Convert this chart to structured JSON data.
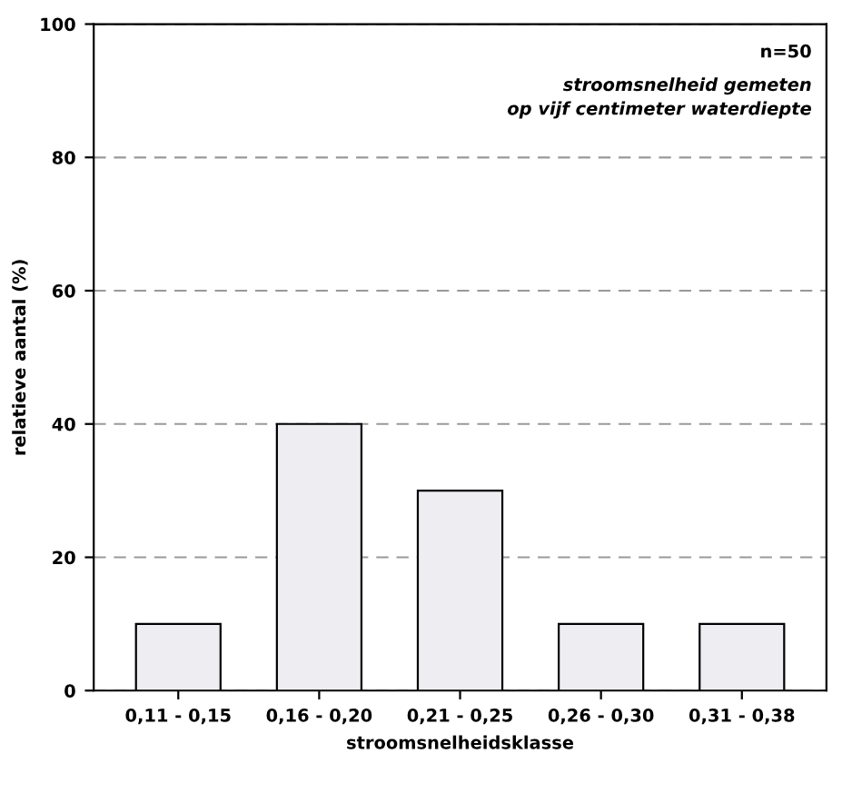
{
  "chart_data": {
    "type": "bar",
    "xlabel": "stroomsnelheidsklasse",
    "ylabel": "relatieve aantal (%)",
    "categories": [
      "0,11 - 0,15",
      "0,16 - 0,20",
      "0,21 - 0,25",
      "0,26 - 0,30",
      "0,31 - 0,38"
    ],
    "values": [
      10,
      40,
      30,
      10,
      10
    ],
    "color": "#eeeef2",
    "ylim": [
      0,
      100
    ],
    "yticks": [
      0,
      20,
      40,
      60,
      80,
      100
    ],
    "grid": "y",
    "annotations": [
      "n=50",
      "stroomsnelheid gemeten\nop vijf centimeter waterdiepte"
    ]
  }
}
